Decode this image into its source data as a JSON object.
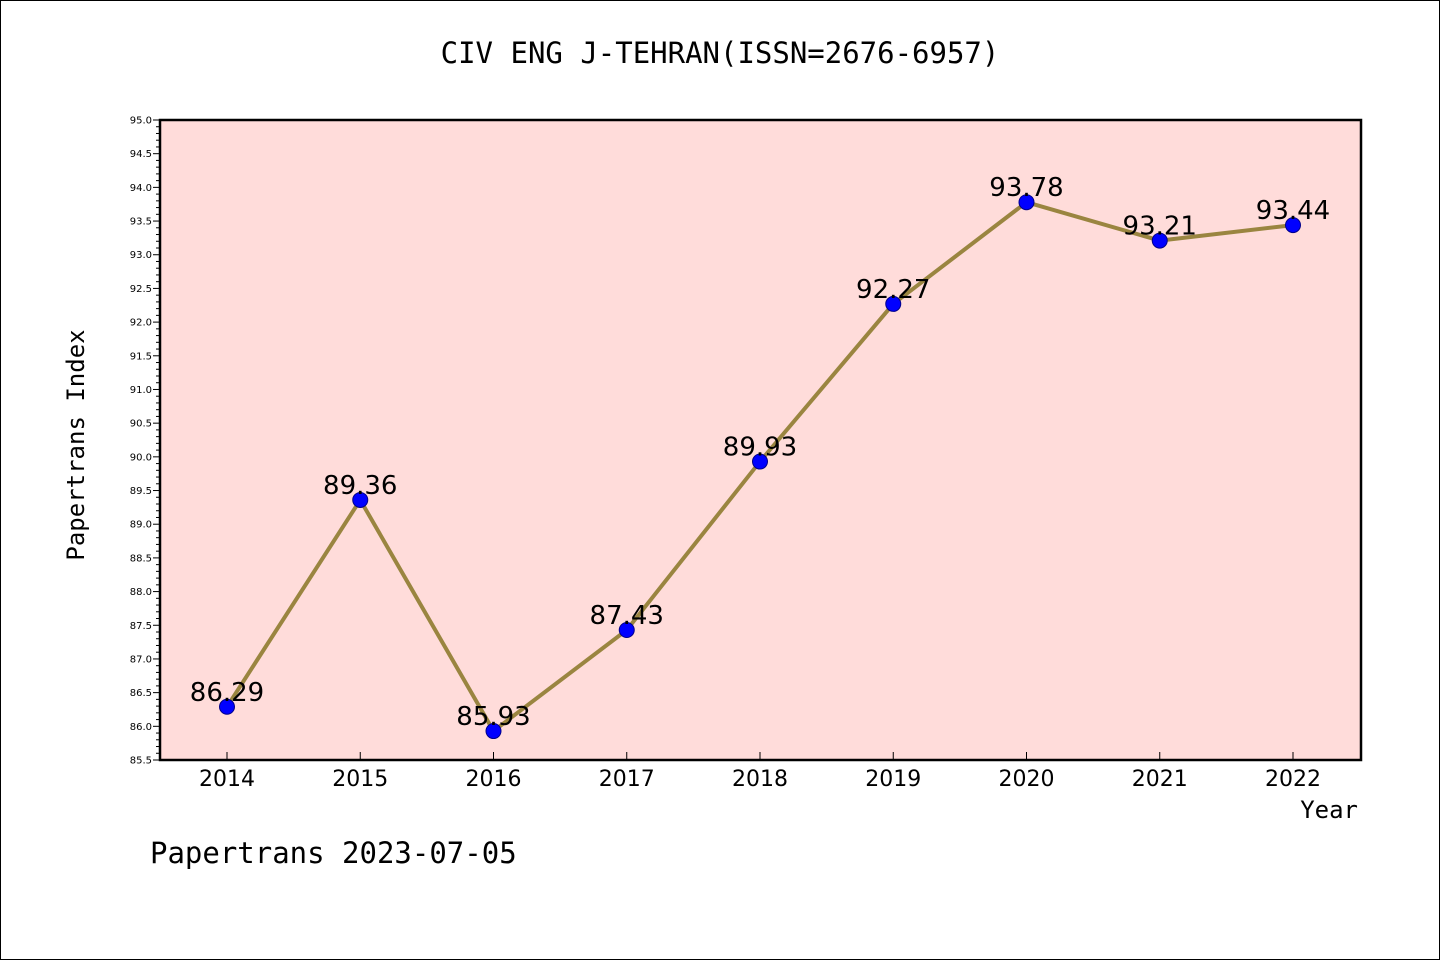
{
  "chart_data": {
    "type": "line",
    "title": "CIV ENG J-TEHRAN(ISSN=2676-6957)",
    "xlabel": "Year",
    "ylabel": "Papertrans Index",
    "categories": [
      "2014",
      "2015",
      "2016",
      "2017",
      "2018",
      "2019",
      "2020",
      "2021",
      "2022"
    ],
    "series": [
      {
        "values": [
          86.29,
          89.36,
          85.93,
          87.43,
          89.93,
          92.27,
          93.78,
          93.21,
          93.44
        ],
        "labels": [
          "86.29",
          "89.36",
          "85.93",
          "87.43",
          "89.93",
          "92.27",
          "93.78",
          "93.21",
          "93.44"
        ]
      }
    ],
    "ylim": [
      85.5,
      95.0
    ],
    "yticks": [
      "85.5",
      "86.0",
      "86.5",
      "87.0",
      "87.5",
      "88.0",
      "88.5",
      "89.0",
      "89.5",
      "90.0",
      "90.5",
      "91.0",
      "91.5",
      "92.0",
      "92.5",
      "93.0",
      "93.5",
      "94.0",
      "94.5",
      "95.0"
    ],
    "grid": false,
    "colors": {
      "plot_background": "#FFDCDA",
      "line": "#9A8540",
      "marker": "#0000FF"
    }
  },
  "footer": "Papertrans 2023-07-05"
}
